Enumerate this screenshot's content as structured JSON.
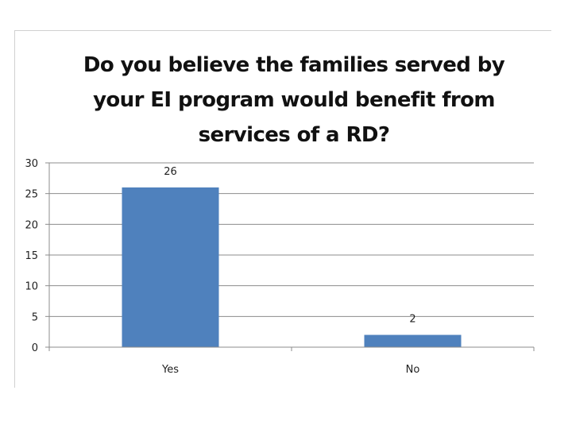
{
  "chart_data": {
    "type": "bar",
    "title": "Do you believe the families served by your EI program would benefit from services of a RD?",
    "categories": [
      "Yes",
      "No"
    ],
    "values": [
      26,
      2
    ],
    "data_labels": [
      "26",
      "2"
    ],
    "ylim": [
      0,
      30
    ],
    "yticks": [
      0,
      5,
      10,
      15,
      20,
      25,
      30
    ],
    "xlabel": "",
    "ylabel": "",
    "grid": true,
    "legend": "none",
    "bar_color": "#4f81bd"
  }
}
